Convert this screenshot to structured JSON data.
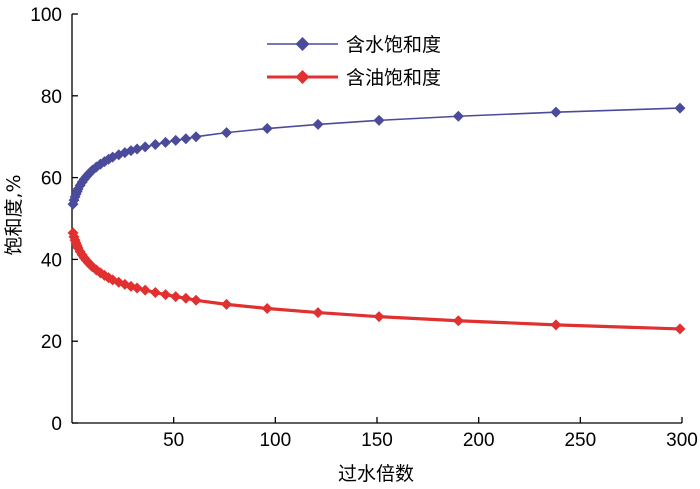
{
  "chart_data": {
    "type": "line",
    "title": "",
    "xlabel": "过水倍数",
    "ylabel": "饱和度,%",
    "xlim": [
      0,
      300
    ],
    "ylim": [
      0,
      100
    ],
    "x_ticks": [
      50,
      100,
      150,
      200,
      250,
      300
    ],
    "y_ticks": [
      0,
      20,
      40,
      60,
      80,
      100
    ],
    "grid": false,
    "legend_position": "top-center",
    "series": [
      {
        "name": "含水饱和度",
        "color": "#4b4b9b",
        "marker": "diamond",
        "points": [
          [
            0.5,
            53.5
          ],
          [
            1,
            54.5
          ],
          [
            1.5,
            55.3
          ],
          [
            2,
            56
          ],
          [
            2.5,
            56.6
          ],
          [
            3,
            57.2
          ],
          [
            4,
            58.1
          ],
          [
            5,
            58.9
          ],
          [
            6,
            59.6
          ],
          [
            7,
            60.2
          ],
          [
            8,
            60.8
          ],
          [
            9,
            61.3
          ],
          [
            10,
            61.8
          ],
          [
            12,
            62.6
          ],
          [
            14,
            63.3
          ],
          [
            16,
            63.9
          ],
          [
            18,
            64.5
          ],
          [
            20,
            65
          ],
          [
            23,
            65.6
          ],
          [
            26,
            66.1
          ],
          [
            29,
            66.6
          ],
          [
            32,
            67
          ],
          [
            36,
            67.5
          ],
          [
            41,
            68.1
          ],
          [
            46,
            68.6
          ],
          [
            51,
            69.1
          ],
          [
            56,
            69.5
          ],
          [
            61,
            70
          ],
          [
            76,
            71
          ],
          [
            96,
            72
          ],
          [
            121,
            73
          ],
          [
            151,
            74
          ],
          [
            190,
            75
          ],
          [
            238,
            76
          ],
          [
            299,
            77
          ]
        ]
      },
      {
        "name": "含油饱和度",
        "color": "#e03030",
        "marker": "diamond",
        "points": [
          [
            0.5,
            46.5
          ],
          [
            1,
            45.5
          ],
          [
            1.5,
            44.7
          ],
          [
            2,
            44
          ],
          [
            2.5,
            43.4
          ],
          [
            3,
            42.8
          ],
          [
            4,
            41.9
          ],
          [
            5,
            41.1
          ],
          [
            6,
            40.4
          ],
          [
            7,
            39.8
          ],
          [
            8,
            39.2
          ],
          [
            9,
            38.7
          ],
          [
            10,
            38.2
          ],
          [
            12,
            37.4
          ],
          [
            14,
            36.7
          ],
          [
            16,
            36.1
          ],
          [
            18,
            35.5
          ],
          [
            20,
            35
          ],
          [
            23,
            34.4
          ],
          [
            26,
            33.9
          ],
          [
            29,
            33.4
          ],
          [
            32,
            33
          ],
          [
            36,
            32.5
          ],
          [
            41,
            31.9
          ],
          [
            46,
            31.4
          ],
          [
            51,
            30.9
          ],
          [
            56,
            30.5
          ],
          [
            61,
            30
          ],
          [
            76,
            29
          ],
          [
            96,
            28
          ],
          [
            121,
            27
          ],
          [
            151,
            26
          ],
          [
            190,
            25
          ],
          [
            238,
            24
          ],
          [
            299,
            23
          ]
        ]
      }
    ]
  }
}
